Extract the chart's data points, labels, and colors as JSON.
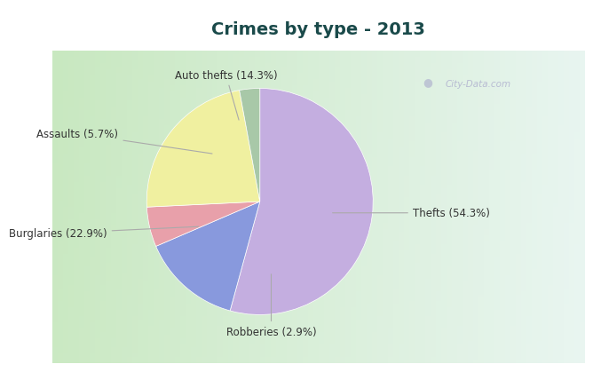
{
  "title": "Crimes by type - 2013",
  "labels": [
    "Thefts",
    "Auto thefts",
    "Assaults",
    "Burglaries",
    "Robberies"
  ],
  "values": [
    54.3,
    14.3,
    5.7,
    22.9,
    2.9
  ],
  "colors": [
    "#c4aee0",
    "#8899dd",
    "#e8a0aa",
    "#f0f0a0",
    "#a8c8a8"
  ],
  "label_texts": [
    "Thefts (54.3%)",
    "Auto thefts (14.3%)",
    "Assaults (5.7%)",
    "Burglaries (22.9%)",
    "Robberies (2.9%)"
  ],
  "title_color": "#1a4a4a",
  "title_fontsize": 14,
  "label_fontsize": 8.5,
  "startangle": 90,
  "bg_cyan": "#00e5f5",
  "bg_chart_left": "#c8e8c0",
  "bg_chart_right": "#e8f5f0",
  "watermark": "City-Data.com"
}
